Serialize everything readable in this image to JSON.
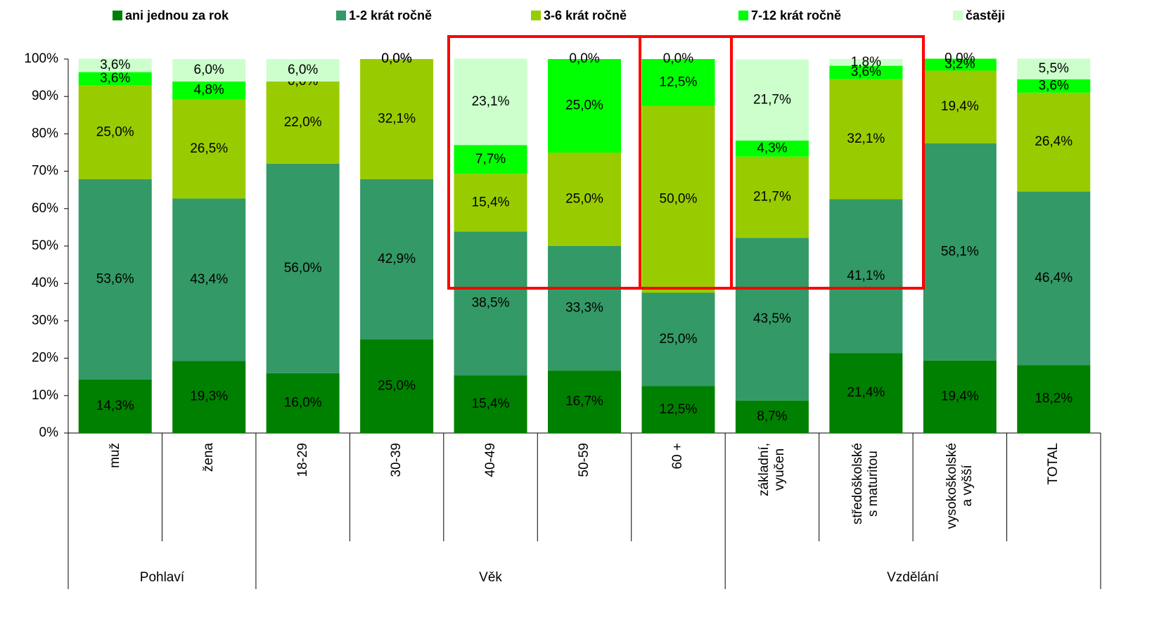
{
  "chart_data": {
    "type": "stacked_bar",
    "categories": [
      "muž",
      "žena",
      "18-29",
      "30-39",
      "40-49",
      "50-59",
      "60 +",
      "základní,\nvyučen",
      "středoškolské\ns maturitou",
      "vysokoškolské\na vyšší",
      "TOTAL"
    ],
    "category_groups": [
      "Pohlaví",
      "Pohlaví",
      "Věk",
      "Věk",
      "Věk",
      "Věk",
      "Věk",
      "Vzdělání",
      "Vzdělání",
      "Vzdělání",
      "Vzdělání"
    ],
    "series": [
      {
        "name": "ani jednou za rok",
        "color": "#008000",
        "values": [
          14.3,
          19.3,
          16.0,
          25.0,
          15.4,
          16.7,
          12.5,
          8.7,
          21.4,
          19.4,
          18.2
        ],
        "value_labels": [
          "14,3%",
          "19,3%",
          "16,0%",
          "25,0%",
          "15,4%",
          "16,7%",
          "12,5%",
          "8,7%",
          "21,4%",
          "19,4%",
          "18,2%"
        ]
      },
      {
        "name": "1-2 krát ročně",
        "color": "#339966",
        "values": [
          53.6,
          43.4,
          56.0,
          42.9,
          38.5,
          33.3,
          25.0,
          43.5,
          41.1,
          58.1,
          46.4
        ],
        "value_labels": [
          "53,6%",
          "43,4%",
          "56,0%",
          "42,9%",
          "38,5%",
          "33,3%",
          "25,0%",
          "43,5%",
          "41,1%",
          "58,1%",
          "46,4%"
        ]
      },
      {
        "name": "3-6 krát ročně",
        "color": "#99cc00",
        "values": [
          25.0,
          26.5,
          22.0,
          32.1,
          15.4,
          25.0,
          50.0,
          21.7,
          32.1,
          19.4,
          26.4
        ],
        "value_labels": [
          "25,0%",
          "26,5%",
          "22,0%",
          "32,1%",
          "15,4%",
          "25,0%",
          "50,0%",
          "21,7%",
          "32,1%",
          "19,4%",
          "26,4%"
        ]
      },
      {
        "name": "7-12 krát ročně",
        "color": "#00ff00",
        "values": [
          3.6,
          4.8,
          0.0,
          0.0,
          7.7,
          25.0,
          12.5,
          4.3,
          3.6,
          3.2,
          3.6
        ],
        "value_labels": [
          "3,6%",
          "4,8%",
          "0,0%",
          "0,0%",
          "7,7%",
          "25,0%",
          "12,5%",
          "4,3%",
          "3,6%",
          "3,2%",
          "3,6%"
        ]
      },
      {
        "name": "častěji",
        "color": "#ccffcc",
        "values": [
          3.6,
          6.0,
          6.0,
          0.0,
          23.1,
          0.0,
          0.0,
          21.7,
          1.8,
          0.0,
          5.5
        ],
        "value_labels": [
          "3,6%",
          "6,0%",
          "6,0%",
          "0,0%",
          "23,1%",
          "0,0%",
          "0,0%",
          "21,7%",
          "1,8%",
          "0,0%",
          "5,5%"
        ]
      }
    ],
    "ylim": [
      0,
      100
    ],
    "yticks": [
      {
        "value": 0,
        "label": "0%"
      },
      {
        "value": 10,
        "label": "10%"
      },
      {
        "value": 20,
        "label": "20%"
      },
      {
        "value": 30,
        "label": "30%"
      },
      {
        "value": 40,
        "label": "40%"
      },
      {
        "value": 50,
        "label": "50%"
      },
      {
        "value": 60,
        "label": "60%"
      },
      {
        "value": 70,
        "label": "70%"
      },
      {
        "value": 80,
        "label": "80%"
      },
      {
        "value": 90,
        "label": "90%"
      },
      {
        "value": 100,
        "label": "100%"
      }
    ],
    "legend": "top"
  }
}
